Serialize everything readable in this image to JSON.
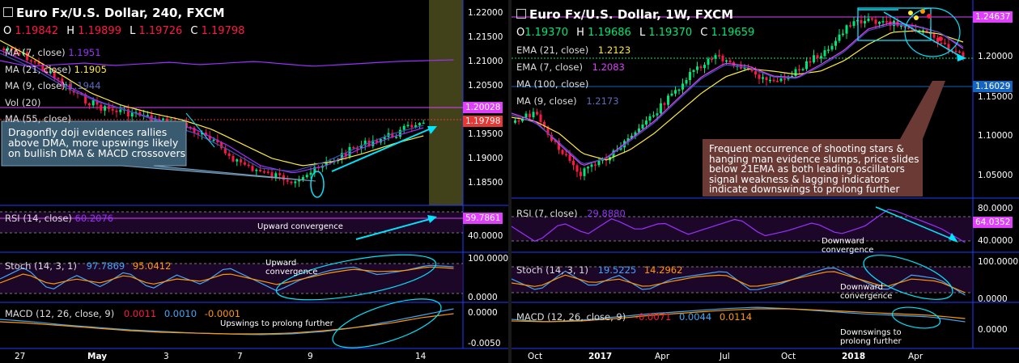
{
  "left": {
    "title": "Euro Fx/U.S. Dollar, 240, FXCM",
    "ohlc": {
      "o_label": "O",
      "o": "1.19842",
      "h_label": "H",
      "h": "1.19899",
      "l_label": "L",
      "l": "1.19726",
      "c_label": "C",
      "c": "1.19798"
    },
    "legend": [
      {
        "label": "MA (7, close)",
        "value": "1.1951",
        "color": "#9b30ff"
      },
      {
        "label": "MA (21, close)",
        "value": "1.1905",
        "color": "#ffeb3b"
      },
      {
        "label": "MA (9, close)",
        "value": "1.1944",
        "color": "#3f51b5"
      },
      {
        "label": "Vol (20)",
        "value": "",
        "color": "#888"
      },
      {
        "label": "MA (55, close)",
        "value": "",
        "color": "#888"
      }
    ],
    "annotation": "Dragonfly doji evidences rallies above DMA, more upswings likely on bullish DMA & MACD crossovers",
    "price_axis": [
      "1.22000",
      "1.21500",
      "1.21000",
      "1.20500",
      "1.20000",
      "1.19500",
      "1.19000",
      "1.18500"
    ],
    "price_tags": [
      {
        "text": "1.20028",
        "bg": "#e040fb"
      },
      {
        "text": "1.19798",
        "bg": "#e53935"
      }
    ],
    "time_axis": [
      "27",
      "May",
      "3",
      "7",
      "9",
      "14"
    ],
    "rsi": {
      "label": "RSI (14, close)",
      "value": "60.2076",
      "tag": "59.7861",
      "axis": [
        "40.0000"
      ],
      "note": "Upward convergence"
    },
    "stoch": {
      "label": "Stoch (14, 3, 1)",
      "k": "97.7869",
      "d": "95.0412",
      "axis": [
        "100.0000",
        "0.0000"
      ],
      "note": "Upward convergence"
    },
    "macd": {
      "label": "MACD (12, 26, close, 9)",
      "hist": "0.0011",
      "macd": "0.0010",
      "signal": "-0.0001",
      "axis": [
        "0.0000",
        "-0.0050"
      ],
      "note": "Upswings to prolong further"
    }
  },
  "right": {
    "title": "Euro Fx/U.S. Dollar, 1W, FXCM",
    "ohlc": {
      "o_label": "O",
      "o": "1.19370",
      "h_label": "H",
      "h": "1.19686",
      "l_label": "L",
      "l": "1.19370",
      "c_label": "C",
      "c": "1.19659"
    },
    "legend": [
      {
        "label": "EMA (21, close)",
        "value": "1.2123",
        "color": "#ffeb3b"
      },
      {
        "label": "EMA (7, close)",
        "value": "1.2083",
        "color": "#e040fb"
      },
      {
        "label": "MA (100, close)",
        "value": "",
        "color": "#888"
      },
      {
        "label": "MA (9, close)",
        "value": "1.2173",
        "color": "#3f51b5"
      }
    ],
    "annotation": "Frequent occurrence of shooting stars & hanging man evidence slumps, price slides below 21EMA as both leading oscillators signal weakness & lagging indicators indicate downswings to prolong further",
    "price_axis": [
      "1.20000",
      "1.15000",
      "1.10000",
      "1.05000"
    ],
    "price_tags": [
      {
        "text": "1.24637",
        "bg": "#e040fb"
      },
      {
        "text": "1.16029",
        "bg": "#1565c0"
      }
    ],
    "time_axis": [
      "Oct",
      "2017",
      "Apr",
      "Jul",
      "Oct",
      "2018",
      "Apr"
    ],
    "rsi": {
      "label": "RSI (7, close)",
      "value": "29.8880",
      "tag": "64.0352",
      "axis": [
        "80.0000",
        "40.0000"
      ],
      "note": "Downward convergence"
    },
    "stoch": {
      "label": "Stoch (14, 3, 1)",
      "k": "19.5225",
      "d": "14.2962",
      "axis": [
        "100.0000",
        "0.0000"
      ],
      "note": "Downward convergence"
    },
    "macd": {
      "label": "MACD (12, 26, close, 9)",
      "hist": "-0.0071",
      "macd": "0.0044",
      "signal": "0.0114",
      "axis": [
        "0.0000"
      ],
      "note": "Downswings to prolong further"
    }
  },
  "colors": {
    "up": "#00e676",
    "down": "#ff1744",
    "accent": "#00e5ff"
  }
}
